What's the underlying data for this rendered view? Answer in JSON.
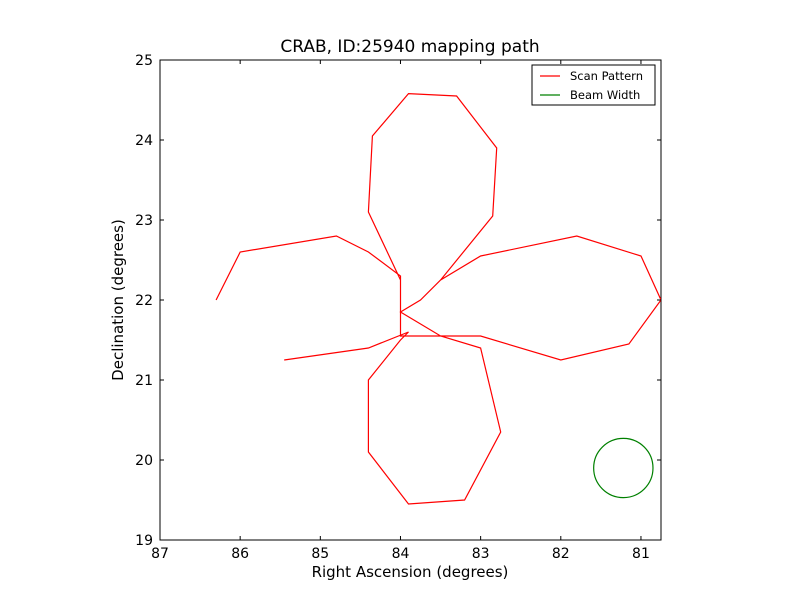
{
  "chart_data": {
    "type": "line",
    "title": "CRAB, ID:25940 mapping path",
    "xlabel": "Right Ascension (degrees)",
    "ylabel": "Declination (degrees)",
    "xlim": [
      87.0,
      80.75
    ],
    "ylim": [
      19,
      25
    ],
    "x_inverted": true,
    "xticks": [
      87,
      86,
      85,
      84,
      83,
      82,
      81
    ],
    "yticks": [
      19,
      20,
      21,
      22,
      23,
      24,
      25
    ],
    "grid": false,
    "legend_position": "top-right",
    "series": [
      {
        "name": "Scan Pattern",
        "color": "#ff0000",
        "x": [
          86.3,
          86.0,
          84.8,
          84.4,
          84.0,
          84.0,
          83.0,
          82.0,
          81.15,
          80.75,
          81.0,
          81.8,
          83.0,
          83.5,
          83.75,
          84.0,
          84.0,
          84.4,
          84.35,
          83.9,
          83.3,
          82.8,
          82.85,
          83.5,
          83.75,
          84.0,
          83.5,
          83.0,
          82.75,
          83.2,
          83.9,
          84.4,
          84.4,
          84.0,
          83.9,
          84.4,
          85.45
        ],
        "y": [
          22.0,
          22.6,
          22.8,
          22.6,
          22.3,
          21.55,
          21.55,
          21.25,
          21.45,
          22.0,
          22.55,
          22.8,
          22.55,
          22.25,
          22.0,
          21.85,
          22.25,
          23.1,
          24.05,
          24.58,
          24.55,
          23.9,
          23.05,
          22.25,
          22.0,
          21.85,
          21.55,
          21.4,
          20.35,
          19.5,
          19.45,
          20.1,
          21.0,
          21.5,
          21.6,
          21.4,
          21.25
        ]
      },
      {
        "name": "Beam Width",
        "color": "#008000",
        "center": [
          81.22,
          19.9
        ],
        "radius": 0.37
      }
    ]
  }
}
